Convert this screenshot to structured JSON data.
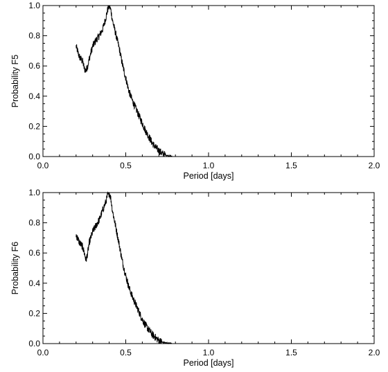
{
  "chart_data": [
    {
      "type": "line",
      "title": "",
      "xlabel": "Period [days]",
      "ylabel": "Probability F5",
      "xlim": [
        0.0,
        2.0
      ],
      "ylim": [
        0.0,
        1.0
      ],
      "xticks": [
        "0.0",
        "0.5",
        "1.0",
        "1.5",
        "2.0"
      ],
      "yticks": [
        "0.0",
        "0.2",
        "0.4",
        "0.6",
        "0.8",
        "1.0"
      ],
      "grid": false,
      "series": [
        {
          "color": "#000000",
          "x": [
            0.2,
            0.22,
            0.24,
            0.25,
            0.26,
            0.27,
            0.28,
            0.3,
            0.32,
            0.34,
            0.36,
            0.38,
            0.39,
            0.4,
            0.41,
            0.42,
            0.44,
            0.46,
            0.48,
            0.5,
            0.52,
            0.54,
            0.56,
            0.58,
            0.6,
            0.62,
            0.64,
            0.66,
            0.68,
            0.7,
            0.72,
            0.74,
            0.76,
            0.78
          ],
          "y": [
            0.73,
            0.66,
            0.63,
            0.58,
            0.57,
            0.6,
            0.65,
            0.73,
            0.77,
            0.8,
            0.84,
            0.92,
            0.97,
            1.0,
            0.97,
            0.9,
            0.81,
            0.72,
            0.61,
            0.52,
            0.43,
            0.37,
            0.32,
            0.27,
            0.22,
            0.17,
            0.13,
            0.09,
            0.06,
            0.04,
            0.02,
            0.01,
            0.005,
            0.0
          ]
        }
      ]
    },
    {
      "type": "line",
      "title": "",
      "xlabel": "Period [days]",
      "ylabel": "Probability F6",
      "xlim": [
        0.0,
        2.0
      ],
      "ylim": [
        0.0,
        1.0
      ],
      "xticks": [
        "0.0",
        "0.5",
        "1.0",
        "1.5",
        "2.0"
      ],
      "yticks": [
        "0.0",
        "0.2",
        "0.4",
        "0.6",
        "0.8",
        "1.0"
      ],
      "grid": false,
      "series": [
        {
          "color": "#000000",
          "x": [
            0.2,
            0.22,
            0.24,
            0.25,
            0.26,
            0.27,
            0.28,
            0.3,
            0.32,
            0.34,
            0.36,
            0.38,
            0.39,
            0.4,
            0.41,
            0.42,
            0.44,
            0.46,
            0.48,
            0.5,
            0.52,
            0.54,
            0.56,
            0.58,
            0.6,
            0.62,
            0.64,
            0.66,
            0.68,
            0.7,
            0.72,
            0.74,
            0.76,
            0.78
          ],
          "y": [
            0.72,
            0.67,
            0.64,
            0.6,
            0.55,
            0.6,
            0.67,
            0.74,
            0.78,
            0.82,
            0.88,
            0.94,
            0.98,
            1.0,
            0.96,
            0.88,
            0.77,
            0.66,
            0.54,
            0.45,
            0.37,
            0.31,
            0.26,
            0.21,
            0.16,
            0.12,
            0.09,
            0.06,
            0.04,
            0.02,
            0.01,
            0.005,
            0.002,
            0.0
          ]
        }
      ]
    }
  ]
}
